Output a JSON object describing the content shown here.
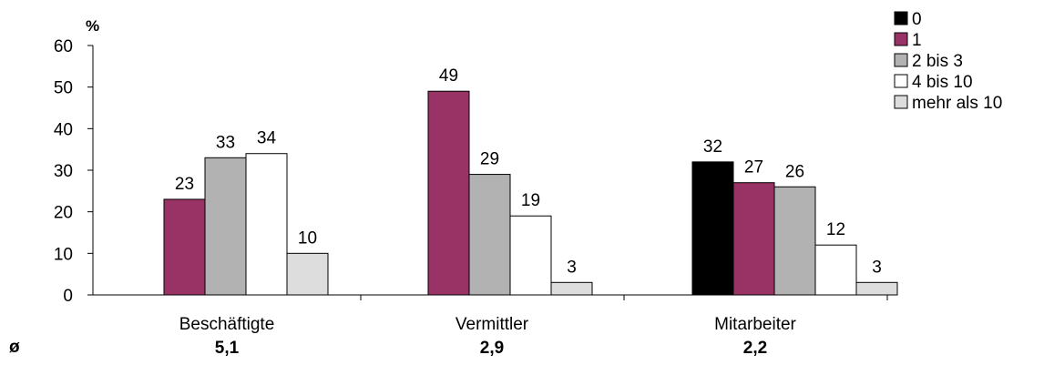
{
  "chart_data": {
    "type": "bar",
    "unit_label": "%",
    "ylim": [
      0,
      60
    ],
    "yticks": [
      0,
      10,
      20,
      30,
      40,
      50,
      60
    ],
    "grid": false,
    "legend_position": "top-right",
    "series": [
      {
        "name": "0",
        "color": "#000000"
      },
      {
        "name": "1",
        "color": "#993366"
      },
      {
        "name": "2 bis 3",
        "color": "#b2b2b2"
      },
      {
        "name": "4 bis 10",
        "color": "#ffffff"
      },
      {
        "name": "mehr als 10",
        "color": "#dddddd"
      }
    ],
    "categories": [
      {
        "label": "Beschäftigte",
        "values": [
          null,
          23,
          33,
          34,
          10
        ],
        "labels": [
          "",
          "23",
          "33",
          "34",
          "10"
        ]
      },
      {
        "label": "Vermittler",
        "values": [
          null,
          49,
          29,
          19,
          3
        ],
        "labels": [
          "",
          "49",
          "29",
          "19",
          "3"
        ]
      },
      {
        "label": "Mitarbeiter",
        "values": [
          32,
          27,
          26,
          12,
          3
        ],
        "labels": [
          "32",
          "27",
          "26",
          "12",
          "3"
        ]
      }
    ],
    "averages": {
      "symbol": "ø",
      "values": [
        "5,1",
        "2,9",
        "2,2"
      ]
    }
  }
}
